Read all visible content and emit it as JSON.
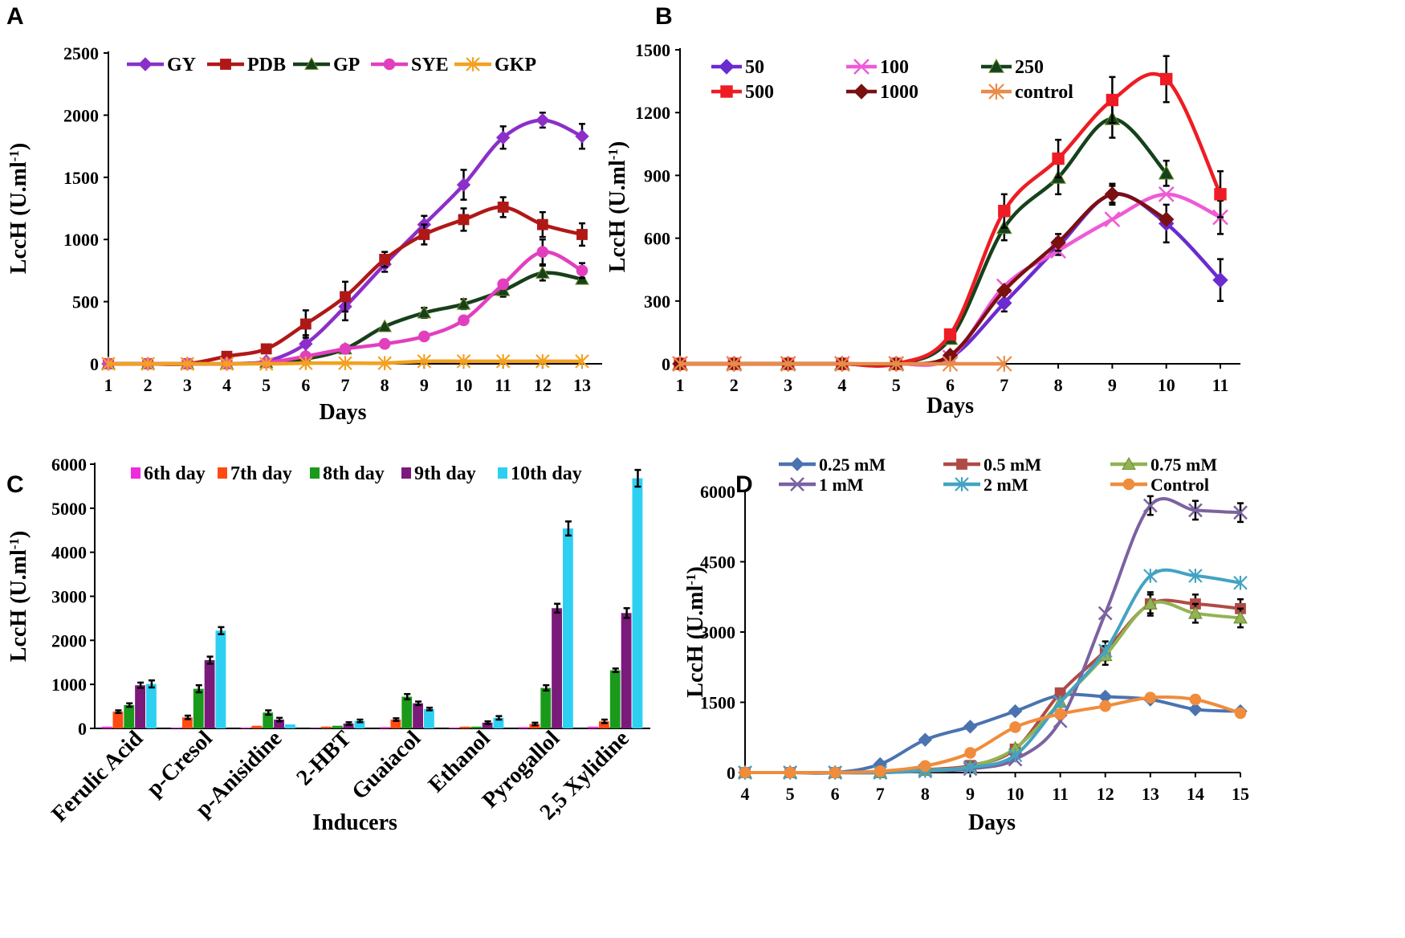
{
  "chart_data": [
    {
      "panel": "A",
      "type": "line",
      "xlabel": "Days",
      "ylabel": "LccH (U.ml",
      "ylabel_sup": "-1",
      "ylabel_close": ")",
      "x": [
        1,
        2,
        3,
        4,
        5,
        6,
        7,
        8,
        9,
        10,
        11,
        12,
        13
      ],
      "xlim": [
        1,
        13
      ],
      "ylim": [
        0,
        2500
      ],
      "yticks": [
        0,
        500,
        1000,
        1500,
        2000,
        2500
      ],
      "legend_position": "top",
      "series": [
        {
          "name": "GY",
          "color": "#8b2fc9",
          "marker": "diamond",
          "values": [
            0,
            0,
            0,
            0,
            20,
            160,
            460,
            800,
            1120,
            1440,
            1820,
            1960,
            1830
          ],
          "errors": [
            0,
            0,
            0,
            0,
            0,
            70,
            110,
            60,
            70,
            120,
            90,
            60,
            100
          ]
        },
        {
          "name": "PDB",
          "color": "#b01818",
          "marker": "square",
          "values": [
            0,
            0,
            0,
            60,
            120,
            320,
            540,
            840,
            1040,
            1160,
            1260,
            1120,
            1040
          ],
          "errors": [
            0,
            0,
            0,
            0,
            0,
            110,
            120,
            60,
            80,
            90,
            80,
            100,
            90
          ]
        },
        {
          "name": "GP",
          "color": "#17401a",
          "marker": "triangle",
          "values": [
            0,
            0,
            0,
            0,
            10,
            40,
            120,
            300,
            410,
            480,
            590,
            730,
            680
          ],
          "errors": [
            0,
            0,
            0,
            0,
            0,
            0,
            0,
            0,
            40,
            40,
            50,
            60,
            0
          ]
        },
        {
          "name": "SYE",
          "color": "#e23fbf",
          "marker": "circle",
          "values": [
            0,
            0,
            0,
            0,
            10,
            60,
            120,
            160,
            220,
            350,
            640,
            900,
            750
          ],
          "errors": [
            0,
            0,
            0,
            0,
            0,
            0,
            0,
            0,
            0,
            0,
            0,
            100,
            60
          ]
        },
        {
          "name": "GKP",
          "color": "#f2a120",
          "marker": "star",
          "values": [
            0,
            0,
            0,
            0,
            0,
            5,
            5,
            5,
            20,
            20,
            20,
            20,
            20
          ],
          "errors": [
            0,
            0,
            0,
            0,
            0,
            0,
            0,
            0,
            0,
            0,
            0,
            0,
            0
          ]
        }
      ]
    },
    {
      "panel": "B",
      "type": "line",
      "xlabel": "Days",
      "ylabel": "LccH (U.ml",
      "ylabel_sup": "-1",
      "ylabel_close": ")",
      "x": [
        1,
        2,
        3,
        4,
        5,
        6,
        7,
        8,
        9,
        10,
        11
      ],
      "xlim": [
        1,
        11
      ],
      "ylim": [
        0,
        1500
      ],
      "yticks": [
        0,
        300,
        600,
        900,
        1200,
        1500
      ],
      "legend_position": "top-left",
      "series": [
        {
          "name": "50",
          "color": "#6a2bd0",
          "marker": "diamond",
          "x": [
            1,
            2,
            3,
            4,
            5,
            6,
            7,
            8,
            9,
            10,
            11
          ],
          "values": [
            0,
            0,
            0,
            0,
            0,
            30,
            290,
            560,
            810,
            670,
            400
          ],
          "errors": [
            0,
            0,
            0,
            0,
            0,
            0,
            40,
            40,
            40,
            90,
            100
          ]
        },
        {
          "name": "100",
          "color": "#ef5ad6",
          "marker": "x",
          "x": [
            1,
            2,
            3,
            4,
            5,
            6,
            7,
            8,
            9,
            10,
            11
          ],
          "values": [
            0,
            0,
            0,
            0,
            0,
            30,
            370,
            540,
            690,
            810,
            700
          ],
          "errors": [
            0,
            0,
            0,
            0,
            0,
            0,
            0,
            0,
            0,
            0,
            80
          ]
        },
        {
          "name": "250",
          "color": "#15421c",
          "marker": "triangle",
          "x": [
            1,
            2,
            3,
            4,
            5,
            6,
            7,
            8,
            9,
            10
          ],
          "values": [
            0,
            0,
            0,
            0,
            0,
            120,
            650,
            890,
            1170,
            910
          ],
          "errors": [
            0,
            0,
            0,
            0,
            0,
            0,
            60,
            80,
            90,
            60
          ]
        },
        {
          "name": "500",
          "color": "#ee1c24",
          "marker": "square",
          "x": [
            1,
            2,
            3,
            4,
            5,
            6,
            7,
            8,
            9,
            10,
            11
          ],
          "values": [
            0,
            0,
            0,
            0,
            0,
            140,
            730,
            980,
            1260,
            1360,
            810
          ],
          "errors": [
            0,
            0,
            0,
            0,
            0,
            0,
            80,
            90,
            110,
            110,
            110
          ]
        },
        {
          "name": "1000",
          "color": "#7a1010",
          "marker": "diamond",
          "x": [
            1,
            2,
            3,
            4,
            5,
            6,
            7,
            8,
            9,
            10
          ],
          "values": [
            0,
            0,
            0,
            0,
            0,
            40,
            350,
            580,
            810,
            690
          ],
          "errors": [
            0,
            0,
            0,
            0,
            0,
            0,
            0,
            40,
            50,
            0
          ]
        },
        {
          "name": "control",
          "color": "#e88c4a",
          "marker": "star",
          "x": [
            1,
            2,
            3,
            4,
            5,
            6,
            7
          ],
          "values": [
            0,
            0,
            0,
            0,
            0,
            0,
            0
          ],
          "errors": [
            0,
            0,
            0,
            0,
            0,
            0,
            0
          ]
        }
      ]
    },
    {
      "panel": "C",
      "type": "bar",
      "xlabel": "Inducers",
      "ylabel": "LccH (U.ml",
      "ylabel_sup": "-1",
      "ylabel_close": ")",
      "categories": [
        "Ferulic Acid",
        "p-Cresol",
        "p-Anisidine",
        "2-HBT",
        "Guaiacol",
        "Ethanol",
        "Pyrogallol",
        "2,5 Xylidine"
      ],
      "ylim": [
        0,
        6000
      ],
      "yticks": [
        0,
        1000,
        2000,
        3000,
        4000,
        5000,
        6000
      ],
      "legend_position": "top",
      "series": [
        {
          "name": "6th day",
          "color": "#ee2cdc",
          "values": [
            40,
            20,
            20,
            10,
            30,
            20,
            30,
            40
          ],
          "errors": [
            0,
            0,
            0,
            0,
            0,
            0,
            0,
            0
          ]
        },
        {
          "name": "7th day",
          "color": "#ff4a12",
          "values": [
            380,
            250,
            60,
            40,
            200,
            40,
            100,
            160
          ],
          "errors": [
            30,
            40,
            0,
            0,
            30,
            0,
            30,
            40
          ]
        },
        {
          "name": "8th day",
          "color": "#1a9a1a",
          "values": [
            530,
            900,
            360,
            60,
            720,
            40,
            920,
            1320
          ],
          "errors": [
            40,
            80,
            50,
            0,
            60,
            0,
            60,
            40
          ]
        },
        {
          "name": "9th day",
          "color": "#7a1a7a",
          "values": [
            980,
            1550,
            200,
            110,
            570,
            130,
            2730,
            2620
          ],
          "errors": [
            60,
            80,
            40,
            30,
            40,
            30,
            100,
            110
          ]
        },
        {
          "name": "10th day",
          "color": "#2ed0f2",
          "values": [
            1010,
            2220,
            90,
            170,
            440,
            240,
            4540,
            5680
          ],
          "errors": [
            80,
            80,
            0,
            30,
            30,
            40,
            160,
            190
          ]
        }
      ]
    },
    {
      "panel": "D",
      "type": "line",
      "xlabel": "Days",
      "ylabel": "LccH (U.ml",
      "ylabel_sup": "-1",
      "ylabel_close": ")",
      "x": [
        4,
        5,
        6,
        7,
        8,
        9,
        10,
        11,
        12,
        13,
        14,
        15
      ],
      "xlim": [
        4,
        15
      ],
      "ylim": [
        0,
        6000
      ],
      "yticks": [
        0,
        1500,
        3000,
        4500,
        6000
      ],
      "legend_position": "top",
      "series": [
        {
          "name": "0.25 mM",
          "color": "#4a73b0",
          "marker": "diamond",
          "values": [
            0,
            0,
            0,
            180,
            700,
            980,
            1310,
            1650,
            1620,
            1560,
            1350,
            1310
          ],
          "errors": [
            0,
            0,
            0,
            0,
            0,
            0,
            0,
            0,
            0,
            0,
            0,
            0
          ]
        },
        {
          "name": "0.5 mM",
          "color": "#b04a46",
          "marker": "square",
          "values": [
            0,
            0,
            0,
            0,
            60,
            150,
            500,
            1700,
            2600,
            3600,
            3600,
            3500
          ],
          "errors": [
            0,
            0,
            0,
            0,
            0,
            0,
            0,
            0,
            200,
            250,
            200,
            200
          ]
        },
        {
          "name": "0.75 mM",
          "color": "#92b353",
          "marker": "triangle",
          "values": [
            0,
            0,
            0,
            0,
            50,
            130,
            520,
            1500,
            2500,
            3600,
            3400,
            3300
          ],
          "errors": [
            0,
            0,
            0,
            0,
            0,
            0,
            0,
            0,
            200,
            200,
            200,
            200
          ]
        },
        {
          "name": "1 mM",
          "color": "#7b62a0",
          "marker": "x",
          "values": [
            0,
            0,
            0,
            0,
            30,
            80,
            280,
            1100,
            3400,
            5700,
            5600,
            5550
          ],
          "errors": [
            0,
            0,
            0,
            0,
            0,
            0,
            0,
            0,
            0,
            200,
            200,
            200
          ]
        },
        {
          "name": "2 mM",
          "color": "#43a3c2",
          "marker": "star",
          "values": [
            0,
            0,
            0,
            0,
            40,
            110,
            370,
            1500,
            2600,
            4200,
            4200,
            4050
          ],
          "errors": [
            0,
            0,
            0,
            0,
            0,
            0,
            0,
            0,
            0,
            0,
            0,
            0
          ]
        },
        {
          "name": "Control",
          "color": "#f08c3c",
          "marker": "circle",
          "values": [
            0,
            0,
            0,
            30,
            140,
            420,
            970,
            1250,
            1420,
            1600,
            1560,
            1270
          ],
          "errors": [
            0,
            0,
            0,
            0,
            0,
            0,
            0,
            0,
            0,
            0,
            0,
            0
          ]
        }
      ]
    }
  ]
}
